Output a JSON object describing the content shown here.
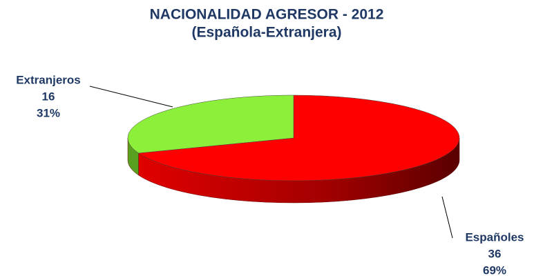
{
  "chart_data": {
    "type": "pie3d",
    "title": "NACIONALIDAD AGRESOR - 2012",
    "subtitle": "(Española-Extranjera)",
    "categories": [
      "Españoles",
      "Extranjeros"
    ],
    "values": [
      36,
      16
    ],
    "percent_labels": [
      "69%",
      "31%"
    ],
    "colors": [
      "#ff0000",
      "#8cf03a"
    ]
  }
}
